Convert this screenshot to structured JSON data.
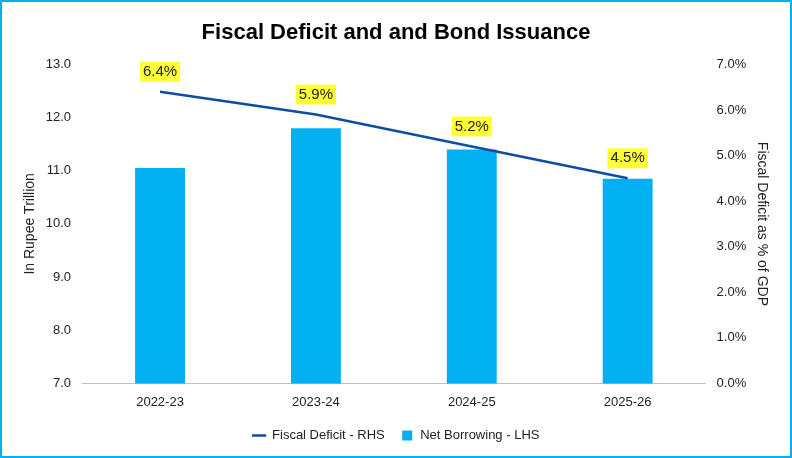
{
  "chart_data": {
    "type": "bar",
    "title": "Fiscal Deficit and and Bond Issuance",
    "categories": [
      "2022-23",
      "2023-24",
      "2024-25",
      "2025-26"
    ],
    "y_label": "In Rupee Trillion",
    "y2_label": "Fiscal Deficit as % of GDP",
    "series": [
      {
        "name": "Net Borrowing - LHS",
        "type": "bar",
        "color": "#00b0f0",
        "values": [
          11.05,
          11.8,
          11.4,
          10.85
        ]
      },
      {
        "name": "Fiscal Deficit - RHS",
        "type": "line",
        "axis": "y2",
        "color": "#0b4ea2",
        "marker": "none",
        "line_style": "solid",
        "data_labels": true,
        "values": [
          6.4,
          5.9,
          5.2,
          4.5
        ],
        "value_labels": [
          "6.4%",
          "5.9%",
          "5.2%",
          "4.5%"
        ]
      }
    ],
    "ylim": [
      7,
      13
    ],
    "yticks": [
      {
        "value": 7,
        "label": "7.0"
      },
      {
        "value": 8,
        "label": "8.0"
      },
      {
        "value": 9,
        "label": "9.0"
      },
      {
        "value": 10,
        "label": "10.0"
      },
      {
        "value": 11,
        "label": "11.0"
      },
      {
        "value": 12,
        "label": "12.0"
      },
      {
        "value": 13,
        "label": "13.0"
      }
    ],
    "y2lim": [
      0,
      7
    ],
    "y2ticks": [
      {
        "value": 0,
        "label": "0.0%"
      },
      {
        "value": 1,
        "label": "1.0%"
      },
      {
        "value": 2,
        "label": "2.0%"
      },
      {
        "value": 3,
        "label": "3.0%"
      },
      {
        "value": 4,
        "label": "4.0%"
      },
      {
        "value": 5,
        "label": "5.0%"
      },
      {
        "value": 6,
        "label": "6.0%"
      },
      {
        "value": 7,
        "label": "7.0%"
      }
    ],
    "grid": false,
    "legend": "bottom"
  }
}
